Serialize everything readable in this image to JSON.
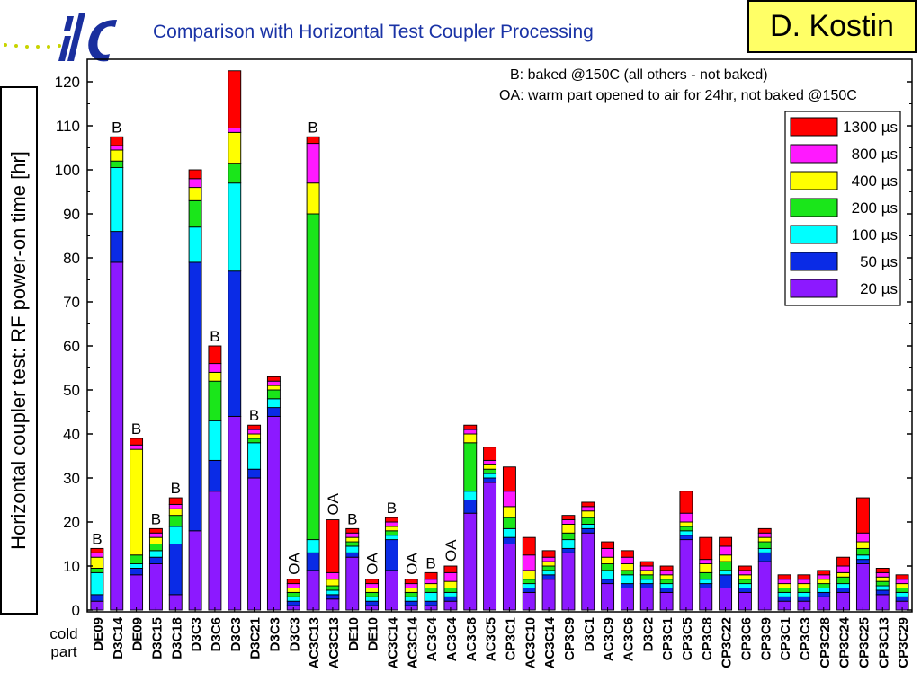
{
  "header": {
    "logo_text": "ilc",
    "title": "Comparison with Horizontal Test Coupler Processing",
    "author": "D. Kostin"
  },
  "colors": {
    "title_blue": "#1a33a6",
    "logo_blue": "#1a2f9e",
    "logo_dots": "#c8d400",
    "author_bg": "#ffff66"
  },
  "chart_data": {
    "type": "bar",
    "stacked": true,
    "ylabel": "Horizontal coupler test: RF power-on time [hr]",
    "xlabel": "cold part",
    "ylim": [
      0,
      123
    ],
    "yticks": [
      0,
      10,
      20,
      30,
      40,
      50,
      60,
      70,
      80,
      90,
      100,
      110,
      120
    ],
    "notes": [
      "B: baked @150C (all others - not baked)",
      "OA: warm part opened to air for 24hr, not baked @150C"
    ],
    "legend_position": "top-right",
    "categories": [
      "DE09",
      "D3C14",
      "DE09",
      "D3C15",
      "D3C18",
      "D3C3",
      "D3C6",
      "D3C3",
      "D3C21",
      "D3C3",
      "D3C3",
      "AC3C13",
      "AC3C13",
      "DE10",
      "DE10",
      "AC3C14",
      "AC3C14",
      "AC3C4",
      "AC3C4",
      "AC3C8",
      "AC3C5",
      "CP3C1",
      "AC3C10",
      "AC3C14",
      "CP3C9",
      "D3C1",
      "AC3C9",
      "AC3C6",
      "D3C2",
      "CP3C1",
      "CP3C5",
      "CP3C8",
      "CP3C22",
      "CP3C6",
      "CP3C9",
      "CP3C1",
      "CP3C3",
      "CP3C28",
      "CP3C24",
      "CP3C25",
      "CP3C13",
      "CP3C29"
    ],
    "annotations": [
      "B",
      "B",
      "B",
      "B",
      "B",
      "",
      "B",
      "",
      "B",
      "",
      "OA",
      "B",
      "OA",
      "B",
      "OA",
      "B",
      "OA",
      "B",
      "OA",
      "",
      "",
      "",
      "",
      "",
      "",
      "",
      "",
      "",
      "",
      "",
      "",
      "",
      "",
      "",
      "",
      "",
      "",
      "",
      "",
      "",
      "",
      ""
    ],
    "series": [
      {
        "name": "20 µs",
        "color": "#8c19ff",
        "values": [
          2,
          79,
          8,
          10.5,
          3.5,
          18,
          27,
          44,
          30,
          44,
          1,
          9,
          2.5,
          12,
          1,
          9,
          1,
          1,
          2,
          22,
          29,
          15,
          4,
          7,
          13,
          17.5,
          6,
          5,
          5,
          4,
          16,
          5,
          5,
          4,
          11,
          2,
          2,
          3,
          4,
          10.5,
          3.5,
          2
        ]
      },
      {
        "name": "50 µs",
        "color": "#0a2be6",
        "values": [
          1.5,
          7,
          1.5,
          1.5,
          11.5,
          61,
          7,
          33,
          2,
          2,
          1,
          4,
          1,
          1,
          1,
          7,
          1,
          1,
          1,
          3,
          1,
          1.5,
          1,
          1,
          1,
          1,
          1,
          1,
          1,
          1,
          1,
          1,
          3,
          1,
          2,
          1,
          1,
          1,
          1,
          1,
          1,
          1
        ]
      },
      {
        "name": "100 µs",
        "color": "#00ffff",
        "values": [
          5,
          14.5,
          1,
          1.5,
          4,
          8,
          9,
          20,
          6,
          2,
          1,
          3,
          1,
          1.5,
          1,
          1,
          1,
          2,
          1,
          2,
          1,
          2,
          1,
          1,
          2,
          1,
          2,
          2,
          1,
          1,
          1,
          1,
          1,
          1,
          1,
          1,
          1,
          1,
          1,
          1,
          1,
          1
        ]
      },
      {
        "name": "200 µs",
        "color": "#1ae61a",
        "values": [
          1,
          1.5,
          2,
          1.5,
          2.5,
          6,
          9,
          4.5,
          1,
          2,
          1,
          74,
          1,
          1,
          1,
          1,
          1,
          1,
          1,
          11,
          1,
          2.5,
          1,
          1,
          1.5,
          1.5,
          1.5,
          1,
          1,
          1,
          1,
          1.5,
          2,
          1,
          1.5,
          1,
          1,
          1,
          1.5,
          1.5,
          1,
          1
        ]
      },
      {
        "name": "400 µs",
        "color": "#ffff00",
        "values": [
          2.5,
          2.5,
          24,
          1.5,
          1.5,
          3,
          2,
          7,
          1,
          1,
          1,
          7,
          1.5,
          1,
          1,
          1,
          1,
          1,
          1.5,
          2,
          1,
          2.5,
          2,
          1,
          2,
          1.5,
          1.5,
          1.5,
          1,
          1,
          1,
          2,
          1.5,
          1,
          1,
          1,
          1,
          1,
          1,
          1.5,
          1,
          1
        ]
      },
      {
        "name": "800 µs",
        "color": "#ff19ff",
        "values": [
          1,
          1,
          1,
          1,
          1,
          2,
          2,
          1,
          1,
          1,
          1,
          9,
          1.5,
          1,
          1,
          1,
          1,
          1,
          2,
          1,
          1,
          3.5,
          3.5,
          1,
          1,
          1,
          2,
          1.5,
          1,
          1,
          2,
          1,
          2,
          1,
          1,
          1,
          1,
          1,
          1.5,
          2,
          1,
          1
        ]
      },
      {
        "name": "1300 µs",
        "color": "#ff0000",
        "values": [
          1,
          2,
          1.5,
          1,
          1.5,
          2,
          4,
          13,
          1,
          1,
          1,
          1.5,
          12,
          1,
          1,
          1,
          1,
          1.5,
          1.5,
          1,
          3,
          5.5,
          4,
          1.5,
          1,
          1,
          1.5,
          1.5,
          1,
          1,
          5,
          5,
          2,
          1,
          1,
          1,
          1,
          1,
          2,
          8,
          1,
          1
        ]
      }
    ]
  }
}
